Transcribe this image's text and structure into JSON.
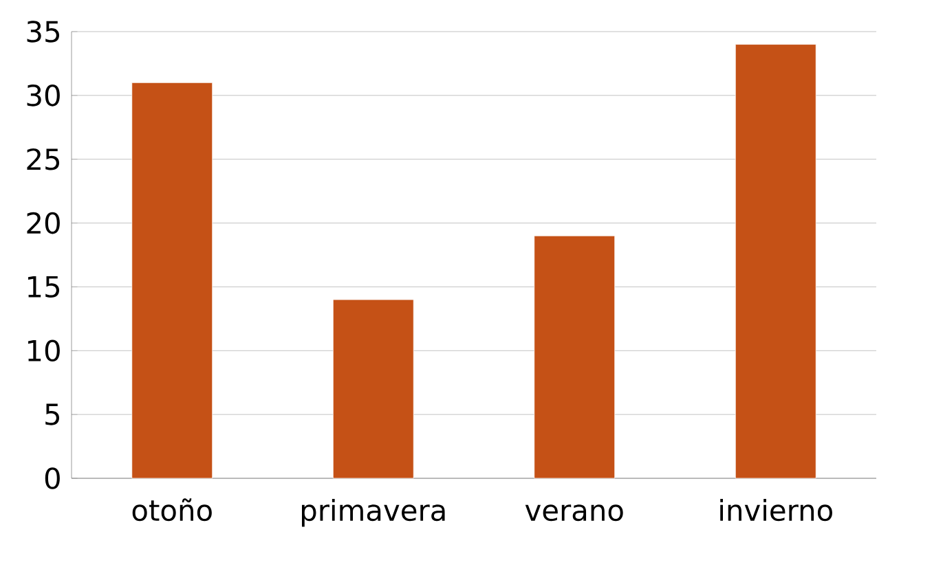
{
  "chart_data": {
    "type": "bar",
    "categories": [
      "otoño",
      "primavera",
      "verano",
      "invierno"
    ],
    "values": [
      31,
      14,
      19,
      34
    ],
    "color": "#c55116",
    "ylim": [
      0,
      35
    ],
    "yticks": [
      0,
      5,
      10,
      15,
      20,
      25,
      30,
      35
    ],
    "grid": "y"
  }
}
